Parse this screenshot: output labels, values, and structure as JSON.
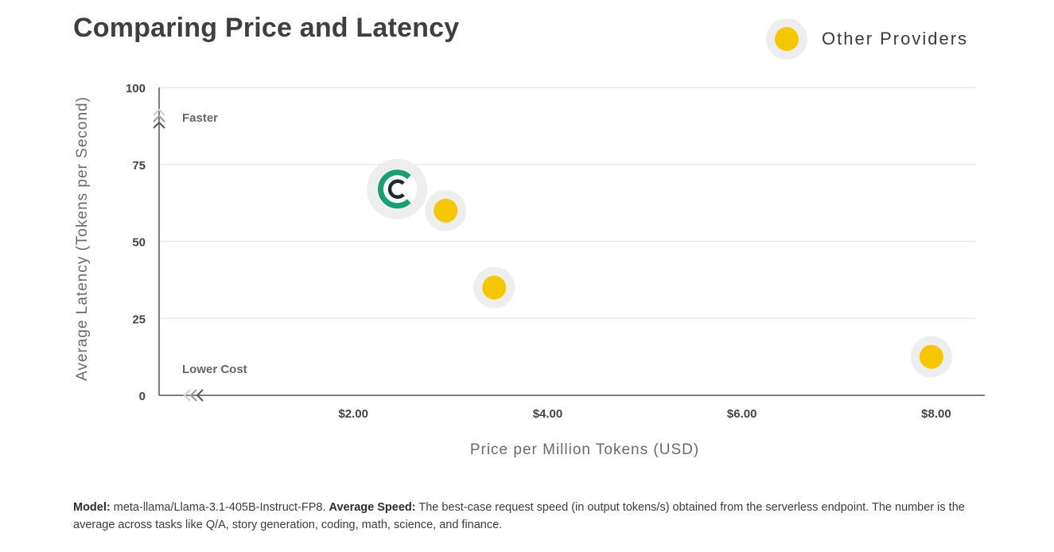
{
  "chart_data": {
    "type": "scatter",
    "title": "Comparing Price and Latency",
    "xlabel": "Price per Million Tokens (USD)",
    "ylabel": "Average Latency (Tokens per Second)",
    "xlim": [
      0,
      8.5
    ],
    "ylim": [
      0,
      100
    ],
    "x_ticks": [
      {
        "value": 2,
        "label": "$2.00"
      },
      {
        "value": 4,
        "label": "$4.00"
      },
      {
        "value": 6,
        "label": "$6.00"
      },
      {
        "value": 8,
        "label": "$8.00"
      }
    ],
    "y_ticks": [
      {
        "value": 0,
        "label": "0"
      },
      {
        "value": 25,
        "label": "25"
      },
      {
        "value": 50,
        "label": "50"
      },
      {
        "value": 75,
        "label": "75"
      },
      {
        "value": 100,
        "label": "100"
      }
    ],
    "grid": true,
    "legend": {
      "position": "top-right",
      "entries": [
        "Other Providers"
      ]
    },
    "annotations": {
      "faster": "Faster",
      "lower_cost": "Lower Cost"
    },
    "series": [
      {
        "name": "Highlighted Provider",
        "marker": "logo",
        "points": [
          {
            "x": 2.45,
            "y": 67
          }
        ]
      },
      {
        "name": "Other Providers",
        "marker": "circle",
        "points": [
          {
            "x": 2.95,
            "y": 60
          },
          {
            "x": 3.45,
            "y": 35
          },
          {
            "x": 7.95,
            "y": 12.5
          }
        ]
      }
    ]
  },
  "colors": {
    "provider_dot": "#f6c600",
    "highlight_green": "#1a9e73",
    "halo": "#eeeeee",
    "gridline": "#e6e6e6",
    "axis": "#555555"
  },
  "footnote": {
    "model_label": "Model:",
    "model_value": "meta-llama/Llama-3.1-405B-Instruct-FP8.",
    "speed_label": "Average Speed:",
    "speed_text": "The best-case request speed (in output tokens/s) obtained from the serverless endpoint. The number is the average across tasks like Q/A, story generation, coding, math, science, and finance."
  }
}
